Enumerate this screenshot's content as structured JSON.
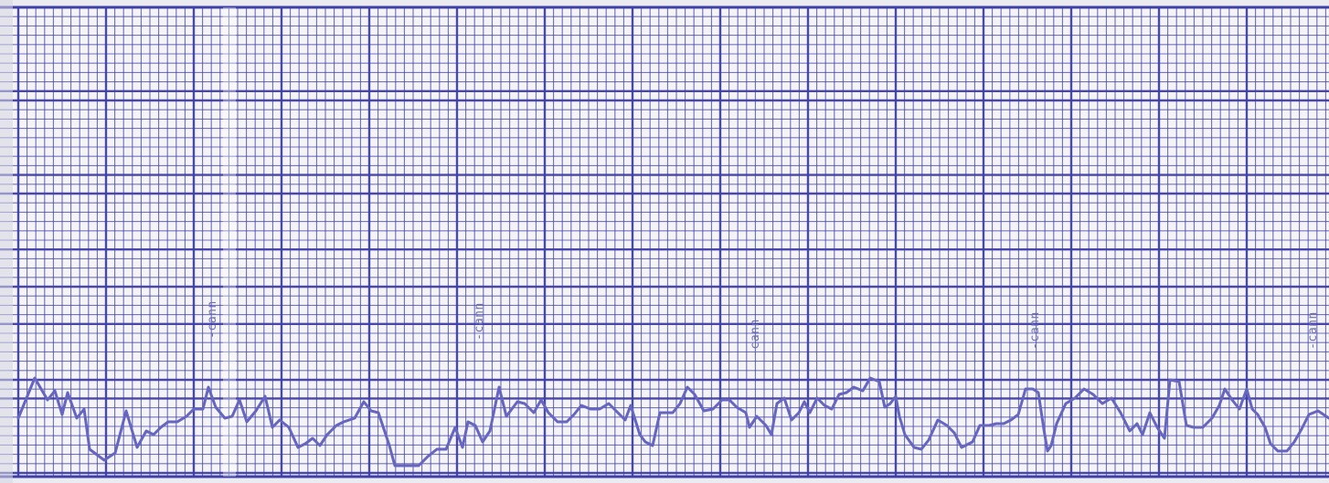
{
  "strip": {
    "paper_color": "#f4f4f7",
    "grid_color": "#3f3fa8",
    "trace_color": "#6666c0",
    "stamp_text": "-cann",
    "stamp_count": 5
  }
}
